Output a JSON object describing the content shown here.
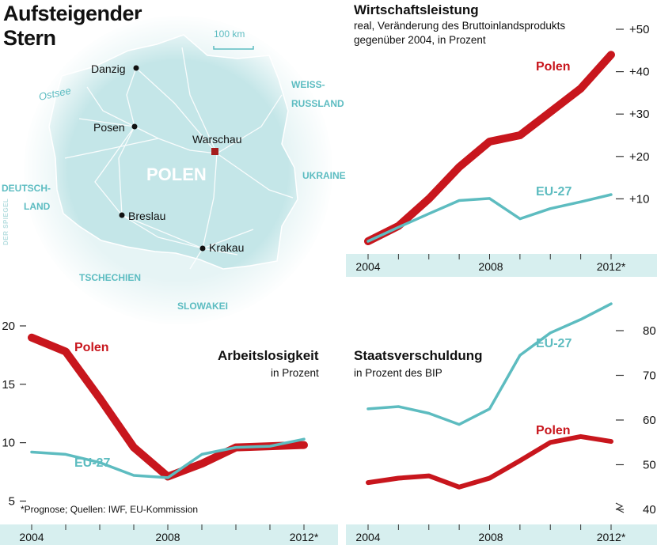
{
  "header": {
    "title_line1": "Aufsteigender",
    "title_line2": "Stern"
  },
  "map": {
    "scale_label": "100 km",
    "country_label": "POLEN",
    "sea_label": "Ostsee",
    "cities": [
      "Danzig",
      "Posen",
      "Warschau",
      "Breslau",
      "Krakau"
    ],
    "neighbors": {
      "belarus_line1": "WEISS-",
      "belarus_line2": "RUSSLAND",
      "ukraine": "UKRAINE",
      "germany_line1": "DEUTSCH-",
      "germany_line2": "LAND",
      "czech": "TSCHECHIEN",
      "slovakia": "SLOWAKEI"
    },
    "credit": "DER SPIEGEL",
    "colors": {
      "land": "#c4e6e8",
      "water_text": "#5cbcc1",
      "capital": "#a51c1c"
    }
  },
  "colors": {
    "poland": "#c8161d",
    "eu": "#5dbcc0",
    "band": "#d7efef",
    "axis": "#333333"
  },
  "panels": {
    "gdp": {
      "title": "Wirtschaftsleistung",
      "subtitle_line1": "real, Veränderung des Bruttoinlandsprodukts",
      "subtitle_line2": "gegenüber 2004, in Prozent"
    },
    "unemployment": {
      "title": "Arbeitslosigkeit",
      "subtitle": "in Prozent"
    },
    "debt": {
      "title": "Staatsverschuldung",
      "subtitle": "in Prozent des BIP"
    }
  },
  "footnote": "*Prognose; Quellen: IWF, EU-Kommission",
  "chart_data": [
    {
      "type": "line",
      "title": "Wirtschaftsleistung",
      "subtitle": "real, Veränderung des Bruttoinlandsprodukts gegenüber 2004, in Prozent",
      "x": [
        2004,
        2005,
        2006,
        2007,
        2008,
        2009,
        2010,
        2011,
        2012
      ],
      "x_tick_labels": [
        "2004",
        "2008",
        "2012*"
      ],
      "y_tick_labels": [
        "+10",
        "+20",
        "+30",
        "+40",
        "+50"
      ],
      "ylim": [
        0,
        50
      ],
      "series": [
        {
          "name": "Polen",
          "values": [
            0,
            3.6,
            10,
            17.5,
            23.5,
            25,
            30.5,
            36,
            44
          ]
        },
        {
          "name": "EU-27",
          "values": [
            0,
            3.3,
            6.5,
            9.6,
            10.1,
            5.3,
            7.7,
            9.3,
            11
          ]
        }
      ]
    },
    {
      "type": "line",
      "title": "Arbeitslosigkeit",
      "subtitle": "in Prozent",
      "x": [
        2004,
        2005,
        2006,
        2007,
        2008,
        2009,
        2010,
        2011,
        2012
      ],
      "x_tick_labels": [
        "2004",
        "2008",
        "2012*"
      ],
      "y_tick_labels": [
        "5",
        "10",
        "15",
        "20"
      ],
      "ylim": [
        3,
        20
      ],
      "series": [
        {
          "name": "Polen",
          "values": [
            19,
            17.8,
            13.8,
            9.6,
            7.1,
            8.2,
            9.6,
            9.7,
            9.8
          ]
        },
        {
          "name": "EU-27",
          "values": [
            9.2,
            9.0,
            8.3,
            7.2,
            7.0,
            9.0,
            9.6,
            9.7,
            10.3
          ]
        }
      ]
    },
    {
      "type": "line",
      "title": "Staatsverschuldung",
      "subtitle": "in Prozent des BIP",
      "x": [
        2004,
        2005,
        2006,
        2007,
        2008,
        2009,
        2010,
        2011,
        2012
      ],
      "x_tick_labels": [
        "2004",
        "2008",
        "2012*"
      ],
      "y_tick_labels": [
        "40",
        "50",
        "60",
        "70",
        "80"
      ],
      "ylim": [
        35,
        80
      ],
      "series": [
        {
          "name": "Polen",
          "values": [
            46,
            47,
            47.5,
            45,
            47,
            50.9,
            55,
            56.3,
            55.2
          ]
        },
        {
          "name": "EU-27",
          "values": [
            62.5,
            63,
            61.5,
            59,
            62.5,
            74.5,
            79.5,
            82.5,
            86
          ]
        }
      ]
    }
  ]
}
